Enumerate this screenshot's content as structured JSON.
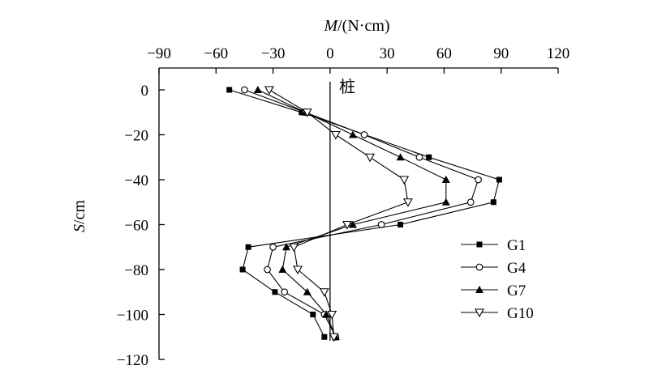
{
  "chart_data": {
    "type": "line",
    "xlabel_italic": "M",
    "xlabel_rest": "/(N·cm)",
    "ylabel_italic": "S",
    "ylabel_rest": "/cm",
    "xlim": [
      -90,
      120
    ],
    "ylim": [
      -120,
      10
    ],
    "x_ticks": [
      -90,
      -60,
      -30,
      0,
      30,
      60,
      90,
      120
    ],
    "y_ticks": [
      0,
      -20,
      -40,
      -60,
      -80,
      -100,
      -120
    ],
    "x_tick_labels": [
      "−90",
      "−60",
      "−30",
      "0",
      "30",
      "60",
      "90",
      "120"
    ],
    "y_tick_labels": [
      "0",
      "−20",
      "−40",
      "−60",
      "−80",
      "−100",
      "−120"
    ],
    "annotation": "桩",
    "legend_position": "right",
    "series": [
      {
        "name": "G1",
        "marker": "square-filled",
        "points": [
          [
            -53,
            0
          ],
          [
            -15,
            -10
          ],
          [
            52,
            -30
          ],
          [
            89,
            -40
          ],
          [
            86,
            -50
          ],
          [
            37,
            -60
          ],
          [
            -43,
            -70
          ],
          [
            -46,
            -80
          ],
          [
            -29,
            -90
          ],
          [
            -9,
            -100
          ],
          [
            -3,
            -110
          ]
        ]
      },
      {
        "name": "G4",
        "marker": "circle-open",
        "points": [
          [
            -45,
            0
          ],
          [
            -13,
            -10
          ],
          [
            18,
            -20
          ],
          [
            47,
            -30
          ],
          [
            78,
            -40
          ],
          [
            74,
            -50
          ],
          [
            27,
            -60
          ],
          [
            -30,
            -70
          ],
          [
            -33,
            -80
          ],
          [
            -24,
            -90
          ],
          [
            -3,
            -100
          ],
          [
            3,
            -110
          ]
        ]
      },
      {
        "name": "G7",
        "marker": "triangle-filled",
        "points": [
          [
            -38,
            0
          ],
          [
            -13,
            -10
          ],
          [
            12,
            -20
          ],
          [
            37,
            -30
          ],
          [
            61,
            -40
          ],
          [
            61,
            -50
          ],
          [
            12,
            -60
          ],
          [
            -23,
            -70
          ],
          [
            -25,
            -80
          ],
          [
            -12,
            -90
          ],
          [
            -2,
            -100
          ],
          [
            3,
            -110
          ]
        ]
      },
      {
        "name": "G10",
        "marker": "triangle-open-down",
        "points": [
          [
            -32,
            0
          ],
          [
            -12,
            -10
          ],
          [
            3,
            -20
          ],
          [
            21,
            -30
          ],
          [
            39,
            -40
          ],
          [
            41,
            -50
          ],
          [
            9,
            -60
          ],
          [
            -19,
            -70
          ],
          [
            -17,
            -80
          ],
          [
            -3,
            -90
          ],
          [
            1,
            -100
          ],
          [
            2,
            -110
          ]
        ]
      }
    ]
  }
}
